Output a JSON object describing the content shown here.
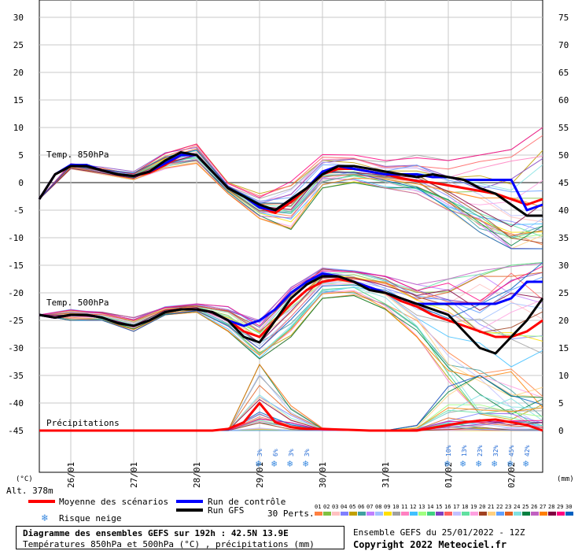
{
  "chart_data": {
    "type": "line",
    "title": "Diagramme des ensembles GEFS sur 192h : 42.5N 13.9E",
    "subtitle": "Températures 850hPa et 500hPa (°C) , précipitations (mm)",
    "left_unit": "(°C)",
    "right_unit": "(mm)",
    "altitude": "Alt. 378m",
    "left_axis": {
      "ticks": [
        30,
        25,
        20,
        15,
        10,
        5,
        0,
        -5,
        -10,
        -15,
        -20,
        -25,
        -30,
        -35,
        -40,
        -45
      ],
      "ylim": [
        -45,
        30
      ]
    },
    "right_axis": {
      "ticks": [
        75,
        70,
        65,
        60,
        55,
        50,
        45,
        40,
        35,
        30,
        25,
        20,
        15,
        10,
        5,
        0
      ],
      "ylim": [
        0,
        75
      ]
    },
    "x_tick_labels": [
      "26/01",
      "27/01",
      "28/01",
      "29/01",
      "30/01",
      "31/01",
      "01/02",
      "02/02"
    ],
    "x_start_hour": 0,
    "x_end_hour": 192,
    "x_tick_hours": [
      12,
      36,
      60,
      84,
      108,
      132,
      156,
      180
    ],
    "grid": true,
    "section_labels": {
      "t850": "Temp. 850hPa",
      "t500": "Temp. 500hPa",
      "precip": "Précipitations"
    },
    "series": [
      {
        "key": "t850_mean",
        "name": "Moyenne des scénarios",
        "color": "#ff0000",
        "x": [
          0,
          6,
          12,
          18,
          24,
          30,
          36,
          42,
          48,
          54,
          60,
          66,
          72,
          78,
          84,
          90,
          96,
          102,
          108,
          114,
          120,
          126,
          132,
          138,
          144,
          150,
          156,
          162,
          168,
          174,
          180,
          186,
          192
        ],
        "y": [
          -3,
          1.5,
          3,
          3,
          2.2,
          1.5,
          1.2,
          1.8,
          3.2,
          5,
          5,
          2,
          -1,
          -2.5,
          -4.5,
          -5.5,
          -3.5,
          -1,
          1.5,
          2.5,
          2.5,
          2,
          1.5,
          0.8,
          0.3,
          0,
          -0.5,
          -1,
          -1.5,
          -2,
          -3,
          -4,
          -3
        ]
      },
      {
        "key": "t850_control",
        "name": "Run de contrôle",
        "color": "#0000ff",
        "x": [
          0,
          6,
          12,
          18,
          24,
          30,
          36,
          42,
          48,
          54,
          60,
          66,
          72,
          78,
          84,
          90,
          96,
          102,
          108,
          114,
          120,
          126,
          132,
          138,
          144,
          150,
          156,
          162,
          168,
          174,
          180,
          186,
          192
        ],
        "y": [
          -3,
          1.5,
          3.2,
          3.2,
          2.2,
          1.5,
          1.2,
          2,
          3.5,
          5,
          5,
          2,
          -1,
          -2.5,
          -4.5,
          -5,
          -3,
          -1,
          2,
          3,
          2.5,
          2,
          1.5,
          1.5,
          1.5,
          1,
          1,
          0.5,
          0.5,
          0.5,
          0.5,
          -5,
          -4
        ]
      },
      {
        "key": "t850_gfs",
        "name": "Run GFS",
        "color": "#000000",
        "x": [
          0,
          6,
          12,
          18,
          24,
          30,
          36,
          42,
          48,
          54,
          60,
          66,
          72,
          78,
          84,
          90,
          96,
          102,
          108,
          114,
          120,
          126,
          132,
          138,
          144,
          150,
          156,
          162,
          168,
          174,
          180,
          186,
          192
        ],
        "y": [
          -3,
          1.5,
          3,
          3,
          2.2,
          1.5,
          1.2,
          2,
          4,
          5.5,
          5,
          2,
          -1,
          -2.5,
          -4,
          -5,
          -3,
          -1,
          1.5,
          3,
          3,
          2.5,
          2,
          1.5,
          1,
          1.5,
          1,
          0.5,
          -1,
          -2,
          -4,
          -6,
          -6
        ]
      },
      {
        "key": "t500_mean",
        "name": "Moyenne des scénarios",
        "color": "#ff0000",
        "x": [
          0,
          6,
          12,
          18,
          24,
          30,
          36,
          42,
          48,
          54,
          60,
          66,
          72,
          78,
          84,
          90,
          96,
          102,
          108,
          114,
          120,
          126,
          132,
          138,
          144,
          150,
          156,
          162,
          168,
          174,
          180,
          186,
          192
        ],
        "y": [
          -24,
          -24.5,
          -24,
          -24,
          -24.5,
          -25.5,
          -26,
          -25,
          -23.5,
          -23,
          -23,
          -23.5,
          -25,
          -27,
          -28,
          -25,
          -22,
          -19.5,
          -18,
          -17.5,
          -18,
          -19,
          -20,
          -21.5,
          -22.5,
          -24,
          -25,
          -26,
          -27,
          -28,
          -28,
          -27,
          -25
        ]
      },
      {
        "key": "t500_control",
        "name": "Run de contrôle",
        "color": "#0000ff",
        "x": [
          0,
          6,
          12,
          18,
          24,
          30,
          36,
          42,
          48,
          54,
          60,
          66,
          72,
          78,
          84,
          90,
          96,
          102,
          108,
          114,
          120,
          126,
          132,
          138,
          144,
          150,
          156,
          162,
          168,
          174,
          180,
          186,
          192
        ],
        "y": [
          -24,
          -24.5,
          -24,
          -24,
          -24.5,
          -25.5,
          -26,
          -25,
          -23.5,
          -23,
          -23,
          -23.5,
          -25,
          -26,
          -25,
          -23,
          -20,
          -18,
          -16.5,
          -17,
          -18,
          -19,
          -20,
          -21,
          -22,
          -22,
          -22,
          -22,
          -22,
          -22,
          -21,
          -18,
          -18
        ]
      },
      {
        "key": "t500_gfs",
        "name": "Run GFS",
        "color": "#000000",
        "x": [
          0,
          6,
          12,
          18,
          24,
          30,
          36,
          42,
          48,
          54,
          60,
          66,
          72,
          78,
          84,
          90,
          96,
          102,
          108,
          114,
          120,
          126,
          132,
          138,
          144,
          150,
          156,
          162,
          168,
          174,
          180,
          186,
          192
        ],
        "y": [
          -24,
          -24.5,
          -24,
          -24,
          -24.5,
          -25.5,
          -26,
          -25,
          -23.5,
          -23,
          -23,
          -23.5,
          -25,
          -28,
          -29,
          -25,
          -21,
          -18.5,
          -17,
          -17,
          -18,
          -19.5,
          -20,
          -21,
          -22,
          -23,
          -24,
          -27,
          -30,
          -31,
          -28,
          -25,
          -21
        ]
      },
      {
        "key": "precip_mean",
        "name": "Moyenne des scénarios",
        "color": "#ff0000",
        "x": [
          0,
          6,
          12,
          18,
          24,
          30,
          36,
          42,
          48,
          54,
          60,
          66,
          72,
          78,
          84,
          90,
          96,
          102,
          108,
          114,
          120,
          126,
          132,
          138,
          144,
          150,
          156,
          162,
          168,
          174,
          180,
          186,
          192
        ],
        "y": [
          0,
          0,
          0,
          0,
          0,
          0,
          0,
          0,
          0,
          0,
          0,
          0,
          0.3,
          1.5,
          5,
          1.5,
          0.6,
          0.3,
          0.3,
          0.2,
          0.1,
          0,
          0,
          0,
          0,
          0.5,
          1,
          1.5,
          1.8,
          2,
          1.5,
          1,
          0
        ]
      }
    ],
    "ensemble_envelopes": [
      {
        "key": "t850_env",
        "name": "30 Perts.",
        "x": [
          0,
          12,
          24,
          36,
          48,
          60,
          72,
          84,
          96,
          108,
          120,
          132,
          144,
          156,
          168,
          180,
          192
        ],
        "min": [
          -3,
          2.5,
          1.5,
          0.5,
          2.5,
          3.5,
          -2,
          -6.5,
          -8.5,
          -1,
          0,
          -1,
          -2,
          -5,
          -9,
          -12,
          -12
        ],
        "max": [
          -3,
          3.5,
          2.8,
          2,
          5.5,
          7,
          0,
          -2,
          1,
          5.5,
          5,
          4,
          5,
          4,
          5,
          6,
          10
        ]
      },
      {
        "key": "t500_env",
        "name": "30 Perts.",
        "x": [
          0,
          12,
          24,
          36,
          48,
          60,
          72,
          84,
          96,
          108,
          120,
          132,
          144,
          156,
          168,
          180,
          192
        ],
        "min": [
          -24,
          -25,
          -25,
          -27,
          -24,
          -23.5,
          -27,
          -32,
          -28,
          -21,
          -20.5,
          -23,
          -28,
          -36,
          -42,
          -43,
          -45
        ],
        "max": [
          -24,
          -23,
          -23.5,
          -24.5,
          -22.5,
          -22,
          -22.5,
          -25,
          -19,
          -15.5,
          -16,
          -17,
          -18.5,
          -17.5,
          -16,
          -15,
          -14.5
        ]
      },
      {
        "key": "precip_env",
        "name": "30 Perts.",
        "x": [
          0,
          12,
          24,
          36,
          48,
          60,
          72,
          84,
          96,
          108,
          120,
          132,
          144,
          156,
          168,
          180,
          192
        ],
        "min": [
          0,
          0,
          0,
          0,
          0,
          0,
          0,
          0,
          0,
          0,
          0,
          0,
          0,
          0,
          0,
          0,
          0
        ],
        "max": [
          0,
          0,
          0,
          0,
          0,
          0,
          0,
          12,
          4.5,
          0.5,
          0,
          0,
          1,
          8,
          10,
          8,
          6
        ]
      }
    ],
    "snow_risk": [
      {
        "hour": 84,
        "label": "3%"
      },
      {
        "hour": 90,
        "label": "6%"
      },
      {
        "hour": 96,
        "label": "3%"
      },
      {
        "hour": 102,
        "label": "3%"
      },
      {
        "hour": 156,
        "label": "10%"
      },
      {
        "hour": 162,
        "label": "13%"
      },
      {
        "hour": 168,
        "label": "23%"
      },
      {
        "hour": 174,
        "label": "32%"
      },
      {
        "hour": 180,
        "label": "45%"
      },
      {
        "hour": 186,
        "label": "42%"
      }
    ],
    "legend": {
      "mean": "Moyenne des scénarios",
      "control": "Run de contrôle",
      "gfs": "Run GFS",
      "snow": "Risque neige",
      "perts": "30 Perts.",
      "pert_numbers": [
        "01",
        "02",
        "03",
        "04",
        "05",
        "06",
        "07",
        "08",
        "09",
        "10",
        "11",
        "12",
        "13",
        "14",
        "15",
        "16",
        "17",
        "18",
        "19",
        "20",
        "21",
        "22",
        "23",
        "24",
        "25",
        "26",
        "27",
        "28",
        "29",
        "30"
      ],
      "pert_colors": [
        "#ff8040",
        "#80c040",
        "#ffc0c0",
        "#8080ff",
        "#c0a000",
        "#40a0a0",
        "#c080ff",
        "#a0c0ff",
        "#ffe000",
        "#a0a0a0",
        "#ff80c0",
        "#40c0ff",
        "#a0ff80",
        "#40d080",
        "#8040c0",
        "#ff6060",
        "#c0c0ff",
        "#60e0a0",
        "#ffa0e0",
        "#a04020",
        "#ffd080",
        "#60a0ff",
        "#e06020",
        "#80e0e0",
        "#008040",
        "#c060c0",
        "#ff8000",
        "#800040",
        "#ff0080",
        "#0060c0"
      ]
    },
    "footer": {
      "title": "Diagramme des ensembles GEFS sur 192h : 42.5N 13.9E",
      "subtitle": "Températures 850hPa et 500hPa (°C) , précipitations (mm)",
      "run": "Ensemble GEFS du 25/01/2022 - 12Z",
      "copyright": "Copyright 2022 Meteociel.fr"
    }
  }
}
